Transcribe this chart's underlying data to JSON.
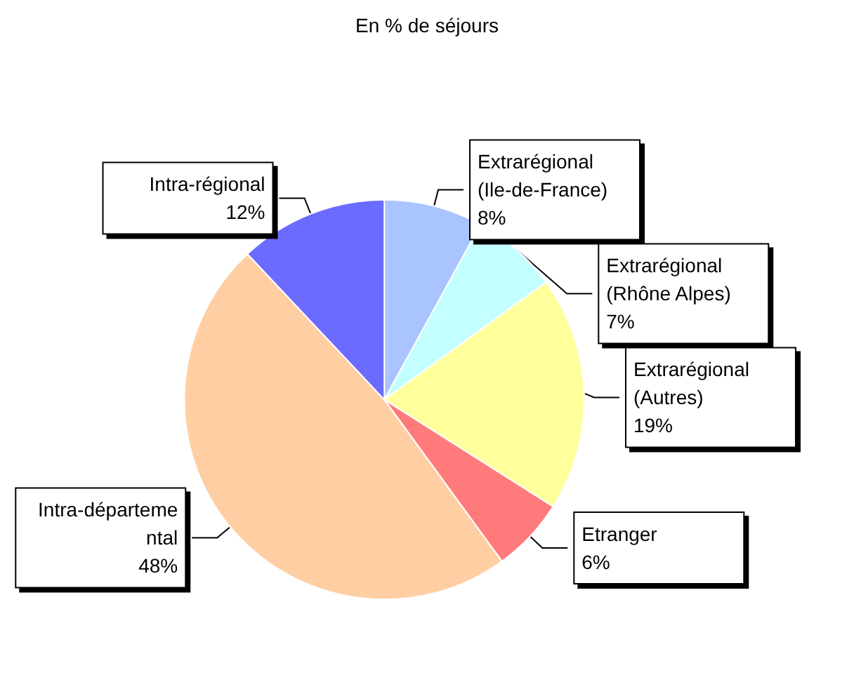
{
  "chart_data": {
    "type": "pie",
    "title": "En % de séjours",
    "categories": [
      "Extrarégional (Ile-de-France)",
      "Extrarégional (Rhône Alpes)",
      "Extrarégional (Autres)",
      "Etranger",
      "Intra-départemental",
      "Intra-régional"
    ],
    "values": [
      8,
      7,
      19,
      6,
      48,
      12
    ],
    "value_labels": [
      "8%",
      "7%",
      "19%",
      "6%",
      "48%",
      "12%"
    ],
    "colors": [
      "#a9c4ff",
      "#c4ffff",
      "#ffff9c",
      "#ff7b7b",
      "#ffcfa3",
      "#6b6bff"
    ],
    "legend": false
  }
}
